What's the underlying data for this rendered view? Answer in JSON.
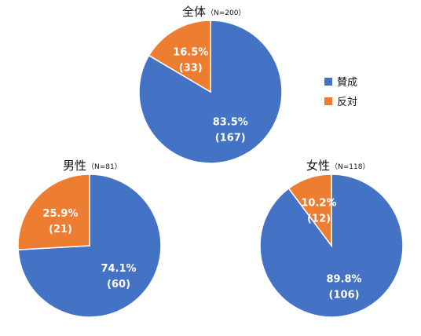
{
  "chart_data": [
    {
      "type": "pie",
      "title": "全体",
      "subtitle": "（N=200）",
      "slices": [
        {
          "name": "賛成",
          "value": 83.5,
          "pct_label": "83.5%",
          "count_label": "(167)",
          "color": "#4472C4"
        },
        {
          "name": "反対",
          "value": 16.5,
          "pct_label": "16.5%",
          "count_label": "(33)",
          "color": "#ED7D31"
        }
      ]
    },
    {
      "type": "pie",
      "title": "男性",
      "subtitle": "（N=81）",
      "slices": [
        {
          "name": "賛成",
          "value": 74.1,
          "pct_label": "74.1%",
          "count_label": "(60)",
          "color": "#4472C4"
        },
        {
          "name": "反対",
          "value": 25.9,
          "pct_label": "25.9%",
          "count_label": "(21)",
          "color": "#ED7D31"
        }
      ]
    },
    {
      "type": "pie",
      "title": "女性",
      "subtitle": "（N=118）",
      "slices": [
        {
          "name": "賛成",
          "value": 89.8,
          "pct_label": "89.8%",
          "count_label": "(106)",
          "color": "#4472C4"
        },
        {
          "name": "反対",
          "value": 10.2,
          "pct_label": "10.2%",
          "count_label": "(12)",
          "color": "#ED7D31"
        }
      ]
    }
  ],
  "legend": {
    "items": [
      {
        "label": "賛成",
        "color": "#4472C4"
      },
      {
        "label": "反対",
        "color": "#ED7D31"
      }
    ]
  }
}
